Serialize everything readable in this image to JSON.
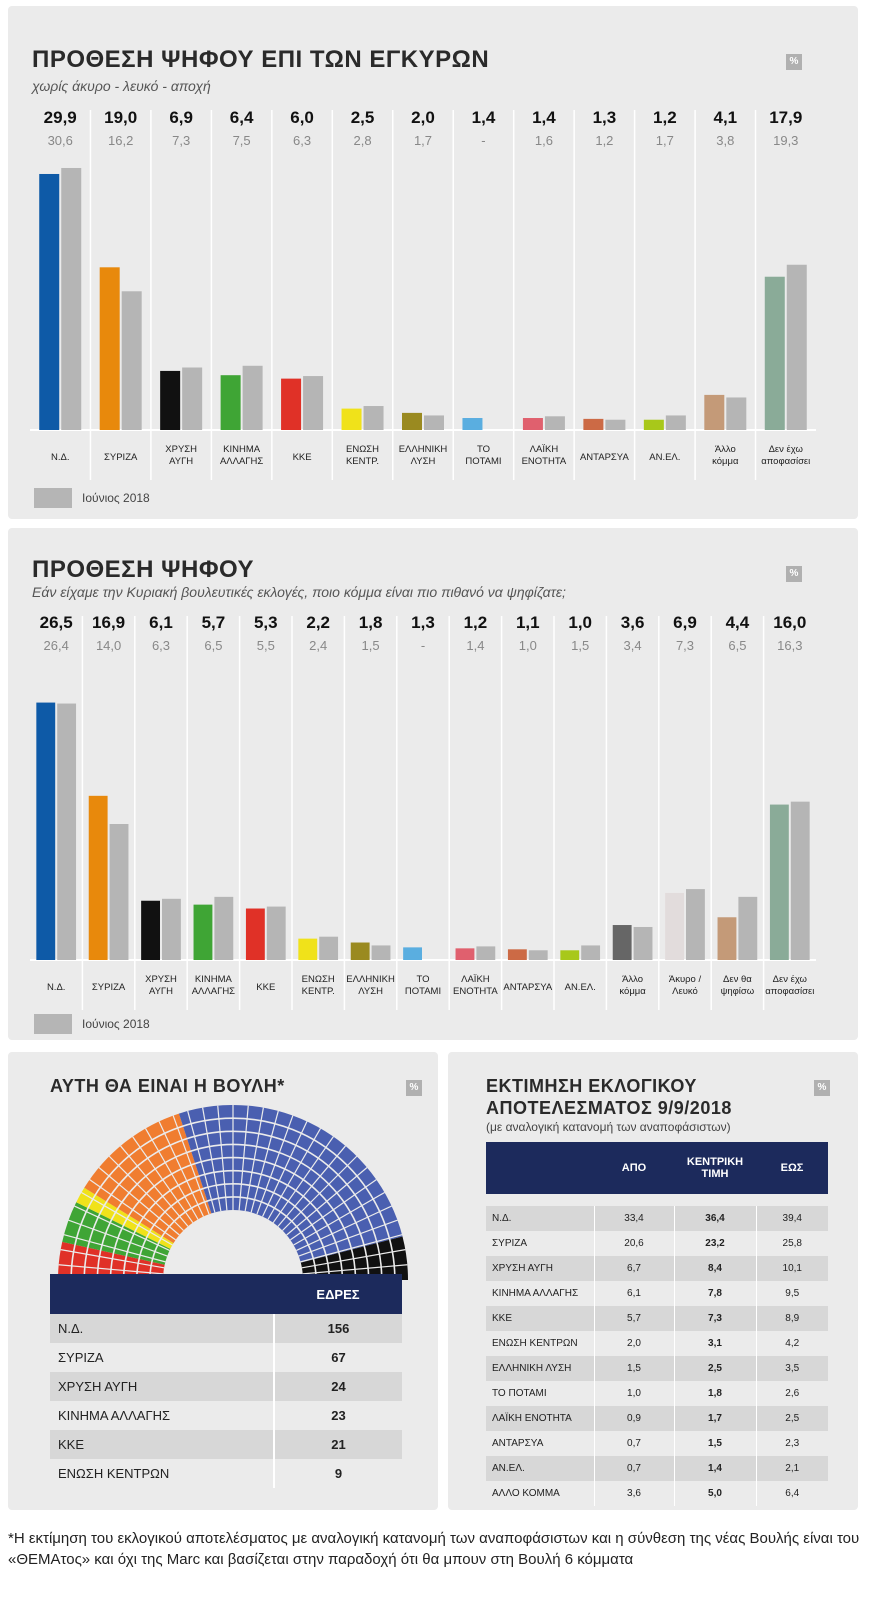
{
  "colors": {
    "series_prev": "#b5b5b5",
    "header_navy": "#1c2a5c",
    "panel_bg": "#ebebeb"
  },
  "chart1": {
    "title": "ΠΡΟΘΕΣΗ ΨΗΦΟΥ ΕΠΙ ΤΩΝ ΕΓΚΥΡΩΝ",
    "subtitle": "χωρίς άκυρο - λευκό - αποχή",
    "badge": "%",
    "legend_label": "Ιούνιος 2018"
  },
  "chart2": {
    "title": "ΠΡΟΘΕΣΗ ΨΗΦΟΥ",
    "subtitle": "Εάν είχαμε την Κυριακή βουλευτικές εκλογές, ποιο κόμμα είναι πιο πιθανό να ψηφίζατε;",
    "badge": "%",
    "legend_label": "Ιούνιος 2018"
  },
  "chart_data": [
    {
      "type": "bar",
      "title": "ΠΡΟΘΕΣΗ ΨΗΦΟΥ ΕΠΙ ΤΩΝ ΕΓΚΥΡΩΝ",
      "subtitle": "χωρίς άκυρο - λευκό - αποχή",
      "categories": [
        "Ν.Δ.",
        "ΣΥΡΙΖΑ",
        "ΧΡΥΣΗ ΑΥΓΗ",
        "ΚΙΝΗΜΑ ΑΛΛΑΓΗΣ",
        "ΚΚΕ",
        "ΕΝΩΣΗ ΚΕΝΤΡ.",
        "ΕΛΛΗΝΙΚΗ ΛΥΣΗ",
        "ΤΟ ΠΟΤΑΜΙ",
        "ΛΑΪΚΗ ΕΝΟΤΗΤΑ",
        "ΑΝΤΑΡΣΥΑ",
        "ΑΝ.ΕΛ.",
        "Άλλο κόμμα",
        "Δεν έχω αποφασίσει"
      ],
      "current_labels": [
        "29,9",
        "19,0",
        "6,9",
        "6,4",
        "6,0",
        "2,5",
        "2,0",
        "1,4",
        "1,4",
        "1,3",
        "1,2",
        "4,1",
        "17,9"
      ],
      "prev_labels": [
        "30,6",
        "16,2",
        "7,3",
        "7,5",
        "6,3",
        "2,8",
        "1,7",
        "-",
        "1,6",
        "1,2",
        "1,7",
        "3,8",
        "19,3"
      ],
      "series": [
        {
          "values": [
            29.9,
            19.0,
            6.9,
            6.4,
            6.0,
            2.5,
            2.0,
            1.4,
            1.4,
            1.3,
            1.2,
            4.1,
            17.9
          ]
        },
        {
          "name": "Ιούνιος 2018",
          "values": [
            30.6,
            16.2,
            7.3,
            7.5,
            6.3,
            2.8,
            1.7,
            null,
            1.6,
            1.2,
            1.7,
            3.8,
            19.3
          ]
        }
      ],
      "bar_colors": [
        "#0e5aa7",
        "#e8890c",
        "#111111",
        "#3fa535",
        "#e03127",
        "#f0e21a",
        "#9a8a20",
        "#5aaee0",
        "#e0606e",
        "#cc6a45",
        "#a8c81a",
        "#c49a78",
        "#8aab98"
      ],
      "ylim": [
        0,
        32
      ]
    },
    {
      "type": "bar",
      "title": "ΠΡΟΘΕΣΗ ΨΗΦΟΥ",
      "subtitle": "Εάν είχαμε την Κυριακή βουλευτικές εκλογές, ποιο κόμμα είναι πιο πιθανό να ψηφίζατε;",
      "categories": [
        "Ν.Δ.",
        "ΣΥΡΙΖΑ",
        "ΧΡΥΣΗ ΑΥΓΗ",
        "ΚΙΝΗΜΑ ΑΛΛΑΓΗΣ",
        "ΚΚΕ",
        "ΕΝΩΣΗ ΚΕΝΤΡ.",
        "ΕΛΛΗΝΙΚΗ ΛΥΣΗ",
        "ΤΟ ΠΟΤΑΜΙ",
        "ΛΑΪΚΗ ΕΝΟΤΗΤΑ",
        "ΑΝΤΑΡΣΥΑ",
        "ΑΝ.ΕΛ.",
        "Άλλο κόμμα",
        "Άκυρο / Λευκό",
        "Δεν θα ψηφίσω",
        "Δεν έχω αποφασίσει"
      ],
      "current_labels": [
        "26,5",
        "16,9",
        "6,1",
        "5,7",
        "5,3",
        "2,2",
        "1,8",
        "1,3",
        "1,2",
        "1,1",
        "1,0",
        "3,6",
        "6,9",
        "4,4",
        "16,0"
      ],
      "prev_labels": [
        "26,4",
        "14,0",
        "6,3",
        "6,5",
        "5,5",
        "2,4",
        "1,5",
        "-",
        "1,4",
        "1,0",
        "1,5",
        "3,4",
        "7,3",
        "6,5",
        "16,3"
      ],
      "series": [
        {
          "values": [
            26.5,
            16.9,
            6.1,
            5.7,
            5.3,
            2.2,
            1.8,
            1.3,
            1.2,
            1.1,
            1.0,
            3.6,
            6.9,
            4.4,
            16.0
          ]
        },
        {
          "name": "Ιούνιος 2018",
          "values": [
            26.4,
            14.0,
            6.3,
            6.5,
            5.5,
            2.4,
            1.5,
            null,
            1.4,
            1.0,
            1.5,
            3.4,
            7.3,
            6.5,
            16.3
          ]
        }
      ],
      "bar_colors": [
        "#0e5aa7",
        "#e8890c",
        "#111111",
        "#3fa535",
        "#e03127",
        "#f0e21a",
        "#9a8a20",
        "#5aaee0",
        "#e0606e",
        "#cc6a45",
        "#a8c81a",
        "#666666",
        "#e2dcdc",
        "#c49a78",
        "#8aab98"
      ],
      "ylim": [
        0,
        28
      ]
    },
    {
      "type": "pie",
      "title": "ΑΥΤΗ ΘΑ ΕΙΝΑΙ Η ΒΟΥΛΗ*",
      "categories": [
        "ΚΚΕ",
        "ΚΙΝΗΜΑ ΑΛΛΑΓΗΣ",
        "ΕΝΩΣΗ ΚΕΝΤΡΩΝ",
        "ΣΥΡΙΖΑ",
        "Ν.Δ.",
        "ΧΡΥΣΗ ΑΥΓΗ"
      ],
      "values": [
        21,
        23,
        9,
        67,
        156,
        24
      ],
      "colors": [
        "#e03127",
        "#3fa535",
        "#f0e21a",
        "#f07d30",
        "#4a5fb0",
        "#111111"
      ]
    },
    {
      "type": "table",
      "title": "ΕΚΤΙΜΗΣΗ ΕΚΛΟΓΙΚΟΥ ΑΠΟΤΕΛΕΣΜΑΤΟΣ 9/9/2018",
      "subtitle": "(με αναλογική κατανομή των αναποφάσιστων)",
      "columns": [
        "",
        "ΑΠΟ",
        "ΚΕΝΤΡΙΚΗ ΤΙΜΗ",
        "ΕΩΣ"
      ]
    }
  ],
  "seats": {
    "title": "ΑΥΤΗ ΘΑ ΕΙΝΑΙ Η ΒΟΥΛΗ*",
    "badge": "%",
    "header": "ΕΔΡΕΣ",
    "rows": [
      {
        "party": "Ν.Δ.",
        "seats": "156"
      },
      {
        "party": "ΣΥΡΙΖΑ",
        "seats": "67"
      },
      {
        "party": "ΧΡΥΣΗ ΑΥΓΗ",
        "seats": "24"
      },
      {
        "party": "ΚΙΝΗΜΑ ΑΛΛΑΓΗΣ",
        "seats": "23"
      },
      {
        "party": "ΚΚΕ",
        "seats": "21"
      },
      {
        "party": "ΕΝΩΣΗ ΚΕΝΤΡΩΝ",
        "seats": "9"
      }
    ]
  },
  "estimate": {
    "title_line1": "ΕΚΤΙΜΗΣΗ ΕΚΛΟΓΙΚΟΥ",
    "title_line2": "ΑΠΟΤΕΛΕΣΜΑΤΟΣ 9/9/2018",
    "subtitle": "(με αναλογική κατανομή των αναποφάσιστων)",
    "badge": "%",
    "col_from": "ΑΠΟ",
    "col_center_line1": "ΚΕΝΤΡΙΚΗ",
    "col_center_line2": "ΤΙΜΗ",
    "col_to": "ΕΩΣ",
    "rows": [
      {
        "party": "Ν.Δ.",
        "from": "33,4",
        "center": "36,4",
        "to": "39,4"
      },
      {
        "party": "ΣΥΡΙΖΑ",
        "from": "20,6",
        "center": "23,2",
        "to": "25,8"
      },
      {
        "party": "ΧΡΥΣΗ ΑΥΓΗ",
        "from": "6,7",
        "center": "8,4",
        "to": "10,1"
      },
      {
        "party": "ΚΙΝΗΜΑ ΑΛΛΑΓΗΣ",
        "from": "6,1",
        "center": "7,8",
        "to": "9,5"
      },
      {
        "party": "ΚΚΕ",
        "from": "5,7",
        "center": "7,3",
        "to": "8,9"
      },
      {
        "party": "ΕΝΩΣΗ ΚΕΝΤΡΩΝ",
        "from": "2,0",
        "center": "3,1",
        "to": "4,2"
      },
      {
        "party": "ΕΛΛΗΝΙΚΗ ΛΥΣΗ",
        "from": "1,5",
        "center": "2,5",
        "to": "3,5"
      },
      {
        "party": "ΤΟ ΠΟΤΑΜΙ",
        "from": "1,0",
        "center": "1,8",
        "to": "2,6"
      },
      {
        "party": "ΛΑΪΚΗ ΕΝΟΤΗΤΑ",
        "from": "0,9",
        "center": "1,7",
        "to": "2,5"
      },
      {
        "party": "ΑΝΤΑΡΣΥΑ",
        "from": "0,7",
        "center": "1,5",
        "to": "2,3"
      },
      {
        "party": "ΑΝ.ΕΛ.",
        "from": "0,7",
        "center": "1,4",
        "to": "2,1"
      },
      {
        "party": "ΑΛΛΟ ΚΟΜΜΑ",
        "from": "3,6",
        "center": "5,0",
        "to": "6,4"
      }
    ]
  },
  "footnote": "*Η εκτίμηση του εκλογικού αποτελέσματος με αναλογική κατανομή των αναποφάσιστων και η σύνθεση της νέας Βουλής είναι του «ΘΕΜΑτος» και όχι της Marc και βασίζεται στην παραδοχή ότι θα μπουν στη Βουλή 6 κόμματα"
}
